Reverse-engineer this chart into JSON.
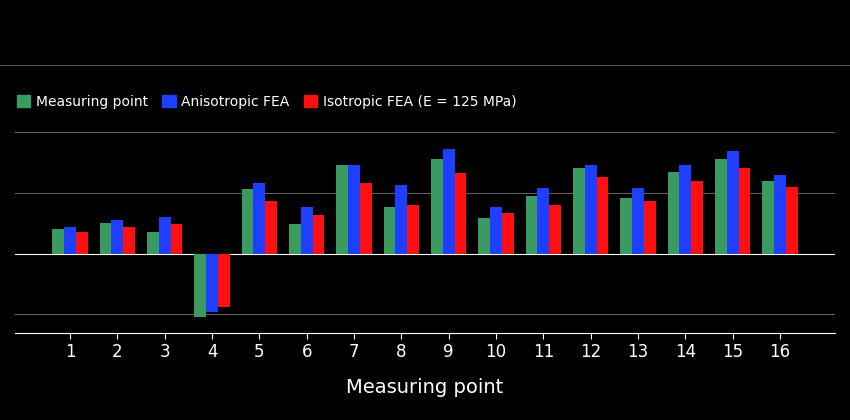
{
  "background_color": "#000000",
  "plot_bg_color": "#000000",
  "grid_color": "#777777",
  "text_color": "#ffffff",
  "bar_colors": [
    "#3a9a60",
    "#1e3fff",
    "#ff1010"
  ],
  "series_labels": [
    "Measuring point",
    "Anisotropic FEA",
    "Isotropic FEA (E = 125 MPa)"
  ],
  "xlabel": "Measuring point",
  "xlabel_fontsize": 14,
  "categories": [
    1,
    2,
    3,
    4,
    5,
    6,
    7,
    8,
    9,
    10,
    11,
    12,
    13,
    14,
    15,
    16
  ],
  "measuring_point": [
    0.2,
    0.25,
    0.18,
    -0.52,
    0.53,
    0.24,
    0.73,
    0.38,
    0.78,
    0.29,
    0.47,
    0.7,
    0.46,
    0.67,
    0.78,
    0.6
  ],
  "anisotropic_fea": [
    0.22,
    0.28,
    0.3,
    -0.48,
    0.58,
    0.38,
    0.73,
    0.56,
    0.86,
    0.38,
    0.54,
    0.73,
    0.54,
    0.73,
    0.84,
    0.65
  ],
  "isotropic_fea": [
    0.18,
    0.22,
    0.24,
    -0.44,
    0.43,
    0.32,
    0.58,
    0.4,
    0.66,
    0.33,
    0.4,
    0.63,
    0.43,
    0.6,
    0.7,
    0.55
  ],
  "ylim": [
    -0.65,
    1.02
  ],
  "bar_width": 0.25,
  "legend_fontsize": 10,
  "tick_fontsize": 12,
  "figure_width": 8.5,
  "figure_height": 4.2,
  "dpi": 100
}
